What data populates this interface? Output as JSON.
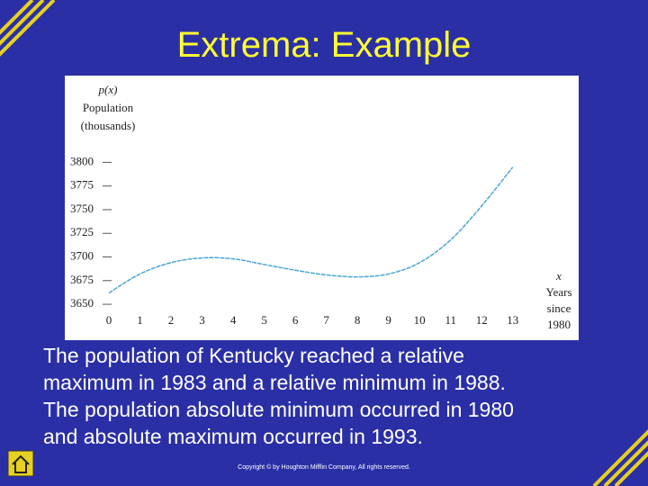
{
  "slide": {
    "title": "Extrema: Example",
    "body": [
      "The  population of  Kentucky reached a relative",
      "maximum in 1983 and a relative minimum in 1988.",
      "The population absolute minimum occurred in 1980",
      "and absolute maximum occurred in 1993."
    ],
    "copyright": "Copyright © by Houghton Mifflin Company, All rights reserved."
  },
  "chart_data": {
    "type": "line",
    "y_label": [
      "p(x)",
      "Population",
      "(thousands)"
    ],
    "x_label": [
      "x",
      "Years",
      "since",
      "1980"
    ],
    "x": [
      0,
      1,
      2,
      3,
      4,
      5,
      6,
      7,
      8,
      9,
      10,
      11,
      12,
      13
    ],
    "series": [
      {
        "name": "p(x)",
        "color": "#4aa6d6",
        "values": [
          3662,
          3682,
          3694,
          3699,
          3698,
          3692,
          3686,
          3681,
          3679,
          3682,
          3694,
          3718,
          3754,
          3795
        ]
      }
    ],
    "xlim": [
      0,
      13.5
    ],
    "ylim": [
      3632,
      3808
    ],
    "xticks": [
      0,
      1,
      2,
      3,
      4,
      5,
      6,
      7,
      8,
      9,
      10,
      11,
      12,
      13
    ],
    "yticks": [
      3650,
      3675,
      3700,
      3725,
      3750,
      3775,
      3800
    ]
  }
}
